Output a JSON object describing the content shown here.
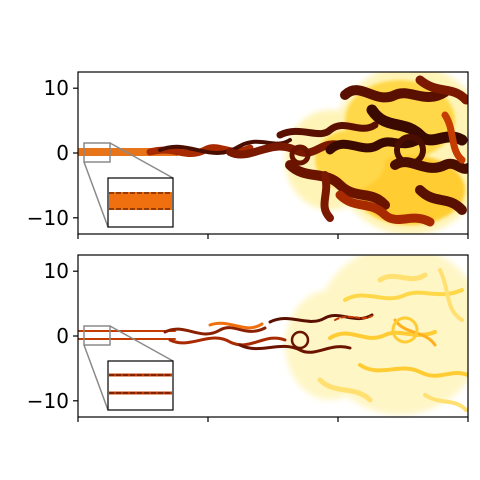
{
  "chart_data": [
    {
      "type": "heatmap",
      "title": "",
      "xlabel": "",
      "ylabel": "",
      "ylim": [
        -12.5,
        12.5
      ],
      "yticks": [
        10,
        0,
        -10
      ],
      "ytick_labels": [
        "10",
        "0",
        "−10"
      ],
      "xtick_labels": [
        "",
        "",
        "",
        ""
      ],
      "grid": false,
      "colormap": "afmhot_r",
      "inset": true
    },
    {
      "type": "heatmap",
      "title": "",
      "xlabel": "",
      "ylabel": "",
      "ylim": [
        -12.5,
        12.5
      ],
      "yticks": [
        10,
        0,
        -10
      ],
      "ytick_labels": [
        "10",
        "0",
        "−10"
      ],
      "xtick_labels": [
        "",
        "",
        "",
        ""
      ],
      "grid": false,
      "colormap": "afmhot_r",
      "inset": true
    }
  ],
  "colors": {
    "dark": "#3a0a00",
    "mid": "#c43c00",
    "orange": "#f07010",
    "light": "#ffe070",
    "pale": "#fff6c4",
    "connector": "#8a8a8a"
  }
}
